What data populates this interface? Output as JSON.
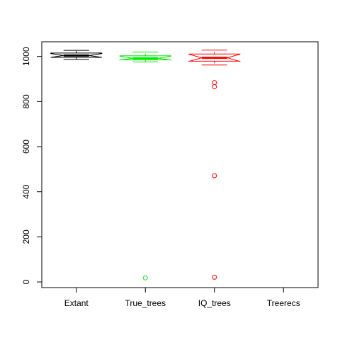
{
  "chart_data": {
    "type": "boxplot",
    "notched": true,
    "title": "",
    "xlabel": "",
    "ylabel": "",
    "ylim": [
      -25,
      1065
    ],
    "y_ticks": [
      0,
      200,
      400,
      600,
      800,
      1000
    ],
    "categories": [
      "Extant",
      "True_trees",
      "IQ_trees",
      "Treerecs"
    ],
    "series": [
      {
        "category": "Extant",
        "color": "#000000",
        "whisker_low": 987,
        "q1": 996,
        "median": 1004,
        "q3": 1015,
        "whisker_high": 1027,
        "notch_low": 996,
        "notch_high": 1013,
        "outliers": []
      },
      {
        "category": "True_trees",
        "color": "#00ee00",
        "whisker_low": 976,
        "q1": 985,
        "median": 992,
        "q3": 1003,
        "whisker_high": 1020,
        "notch_low": 984,
        "notch_high": 1001,
        "outliers": [
          18
        ]
      },
      {
        "category": "IQ_trees",
        "color": "#ff0000",
        "whisker_low": 962,
        "q1": 979,
        "median": 994,
        "q3": 1011,
        "whisker_high": 1028,
        "notch_low": 978,
        "notch_high": 1010,
        "outliers": [
          884,
          866,
          471,
          21
        ]
      },
      {
        "category": "Treerecs",
        "color": "#0000ff",
        "whisker_low": null,
        "q1": null,
        "median": null,
        "q3": null,
        "whisker_high": null,
        "notch_low": null,
        "notch_high": null,
        "outliers": []
      }
    ]
  }
}
